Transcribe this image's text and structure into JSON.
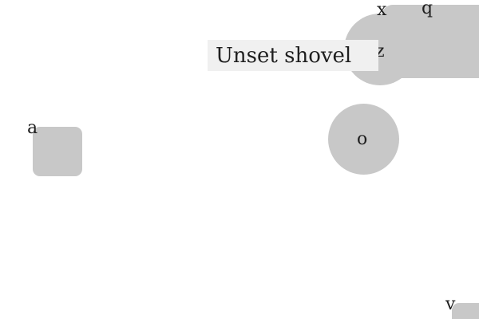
{
  "tooltip": {
    "text": "Unset shovel"
  },
  "labels": {
    "x": "x",
    "q": "q",
    "z": "z",
    "o": "o",
    "a": "a",
    "v": "v"
  },
  "colors": {
    "shape_fill": "#c8c8c8",
    "tooltip_bg": "#f0f0f0",
    "text": "#1f1f1f"
  }
}
